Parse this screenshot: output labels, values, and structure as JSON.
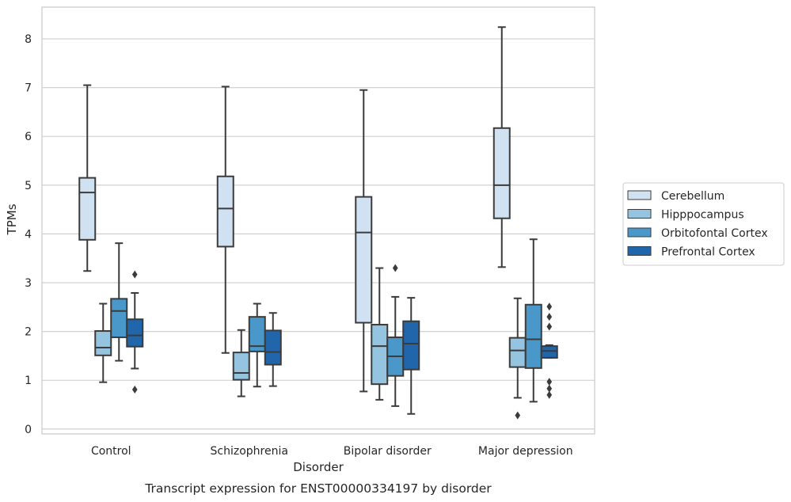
{
  "chart_data": {
    "type": "box",
    "caption": "Transcript expression for ENST00000334197 by disorder",
    "xlabel": "Disorder",
    "ylabel": "TPMs",
    "ylim": [
      -0.1,
      8.65
    ],
    "yticks": [
      0,
      1,
      2,
      3,
      4,
      5,
      6,
      7,
      8
    ],
    "ytick_labels": [
      "0",
      "1",
      "2",
      "3",
      "4",
      "5",
      "6",
      "7",
      "8"
    ],
    "grid": "horizontal",
    "legend_position": "right",
    "categories": [
      "Control",
      "Schizophrenia",
      "Bipolar disorder",
      "Major depression"
    ],
    "series": [
      {
        "name": "Cerebellum",
        "color": "#d0e1f2",
        "boxes": [
          {
            "whislo": 3.24,
            "q1": 3.88,
            "med": 4.85,
            "q3": 5.15,
            "whishi": 7.05,
            "fliers": []
          },
          {
            "whislo": 1.56,
            "q1": 3.74,
            "med": 4.52,
            "q3": 5.18,
            "whishi": 7.02,
            "fliers": []
          },
          {
            "whislo": 0.77,
            "q1": 2.18,
            "med": 4.03,
            "q3": 4.76,
            "whishi": 6.95,
            "fliers": []
          },
          {
            "whislo": 3.32,
            "q1": 4.32,
            "med": 5.0,
            "q3": 6.17,
            "whishi": 8.24,
            "fliers": []
          }
        ]
      },
      {
        "name": "Hipppocampus",
        "color": "#94c4df",
        "boxes": [
          {
            "whislo": 0.96,
            "q1": 1.51,
            "med": 1.67,
            "q3": 2.01,
            "whishi": 2.57,
            "fliers": []
          },
          {
            "whislo": 0.67,
            "q1": 1.01,
            "med": 1.15,
            "q3": 1.57,
            "whishi": 2.03,
            "fliers": []
          },
          {
            "whislo": 0.6,
            "q1": 0.92,
            "med": 1.7,
            "q3": 2.14,
            "whishi": 3.3,
            "fliers": []
          },
          {
            "whislo": 0.64,
            "q1": 1.27,
            "med": 1.61,
            "q3": 1.87,
            "whishi": 2.68,
            "fliers": [
              0.28
            ]
          }
        ]
      },
      {
        "name": "Orbitofontal Cortex",
        "color": "#4a98c9",
        "boxes": [
          {
            "whislo": 1.4,
            "q1": 1.88,
            "med": 2.42,
            "q3": 2.67,
            "whishi": 3.81,
            "fliers": []
          },
          {
            "whislo": 0.87,
            "q1": 1.59,
            "med": 1.7,
            "q3": 2.3,
            "whishi": 2.57,
            "fliers": []
          },
          {
            "whislo": 0.47,
            "q1": 1.09,
            "med": 1.49,
            "q3": 1.88,
            "whishi": 2.71,
            "fliers": [
              3.3
            ]
          },
          {
            "whislo": 0.56,
            "q1": 1.25,
            "med": 1.84,
            "q3": 2.55,
            "whishi": 3.89,
            "fliers": []
          }
        ]
      },
      {
        "name": "Prefrontal Cortex",
        "color": "#2165ab",
        "boxes": [
          {
            "whislo": 1.24,
            "q1": 1.69,
            "med": 1.92,
            "q3": 2.25,
            "whishi": 2.79,
            "fliers": [
              3.17,
              0.81
            ]
          },
          {
            "whislo": 0.88,
            "q1": 1.32,
            "med": 1.58,
            "q3": 2.02,
            "whishi": 2.38,
            "fliers": []
          },
          {
            "whislo": 0.31,
            "q1": 1.22,
            "med": 1.75,
            "q3": 2.21,
            "whishi": 2.69,
            "fliers": []
          },
          {
            "whislo": 1.46,
            "q1": 1.46,
            "med": 1.6,
            "q3": 1.7,
            "whishi": 1.72,
            "fliers": [
              2.51,
              2.3,
              2.1,
              0.97,
              0.83,
              0.7
            ]
          }
        ]
      }
    ]
  }
}
